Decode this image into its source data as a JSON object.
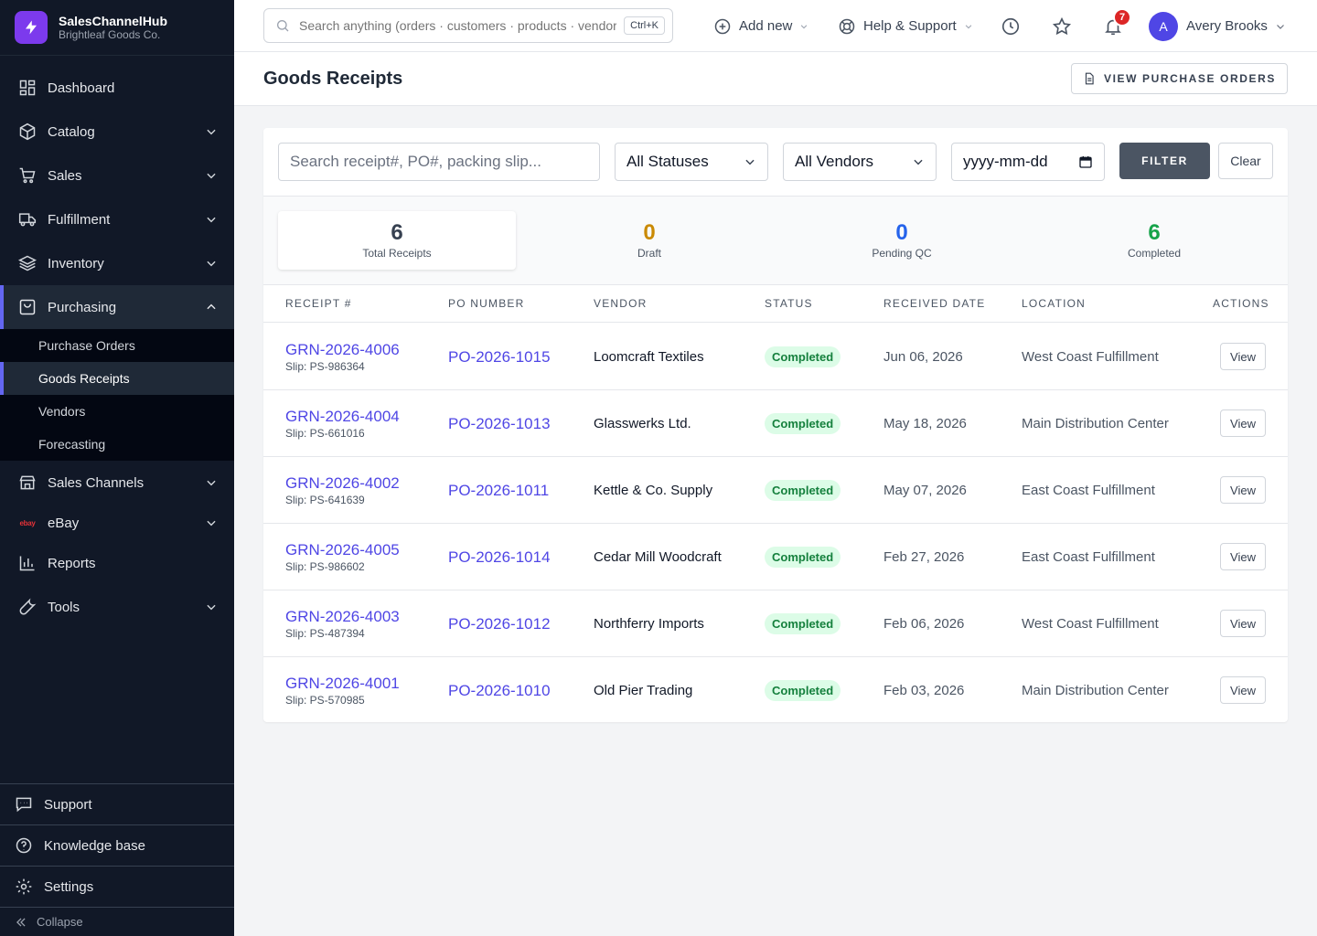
{
  "app": {
    "name": "SalesChannelHub",
    "org": "Brightleaf Goods Co.",
    "brand_color": "#7c3aed"
  },
  "sidebar": {
    "items": [
      {
        "key": "dashboard",
        "label": "Dashboard",
        "icon": "dashboard-icon"
      },
      {
        "key": "catalog",
        "label": "Catalog",
        "icon": "box-icon"
      },
      {
        "key": "sales",
        "label": "Sales",
        "icon": "cart-icon"
      },
      {
        "key": "fulfillment",
        "label": "Fulfillment",
        "icon": "truck-icon"
      },
      {
        "key": "inventory",
        "label": "Inventory",
        "icon": "layers-icon"
      },
      {
        "key": "purchasing",
        "label": "Purchasing",
        "icon": "bag-icon"
      },
      {
        "key": "sales-channels",
        "label": "Sales Channels",
        "icon": "store-icon"
      },
      {
        "key": "ebay",
        "label": "eBay",
        "icon": "ebay-logo"
      },
      {
        "key": "reports",
        "label": "Reports",
        "icon": "bar-chart-icon"
      },
      {
        "key": "tools",
        "label": "Tools",
        "icon": "wrench-icon"
      }
    ],
    "purchasing_sub": [
      {
        "label": "Purchase Orders"
      },
      {
        "label": "Goods Receipts"
      },
      {
        "label": "Vendors"
      },
      {
        "label": "Forecasting"
      }
    ],
    "ebay_logo": "ebay",
    "footer": [
      {
        "label": "Support",
        "icon": "chat-icon"
      },
      {
        "label": "Knowledge base",
        "icon": "question-icon"
      },
      {
        "label": "Settings",
        "icon": "gear-icon"
      }
    ],
    "collapse_label": "Collapse"
  },
  "topbar": {
    "search_placeholder": "Search anything (orders · customers · products · vendors)",
    "shortcut": "Ctrl+K",
    "add_new": "Add new",
    "help": "Help & Support",
    "notifications_count": "7",
    "user_initial": "A",
    "user_name": "Avery Brooks"
  },
  "page": {
    "title": "Goods Receipts",
    "view_pos_label": "VIEW PURCHASE ORDERS"
  },
  "filters": {
    "search_placeholder": "Search receipt#, PO#, packing slip...",
    "status_value": "All Statuses",
    "vendor_value": "All Vendors",
    "date_placeholder": "yyyy-mm-dd",
    "filter_label": "FILTER",
    "clear_label": "Clear"
  },
  "stats": [
    {
      "value": "6",
      "label": "Total Receipts",
      "color": "#374151"
    },
    {
      "value": "0",
      "label": "Draft",
      "color": "#ca8a04"
    },
    {
      "value": "0",
      "label": "Pending QC",
      "color": "#2563eb"
    },
    {
      "value": "6",
      "label": "Completed",
      "color": "#16a34a"
    }
  ],
  "table": {
    "headers": [
      "Receipt #",
      "PO Number",
      "Vendor",
      "Status",
      "Received Date",
      "Location",
      "Actions"
    ],
    "rows": [
      {
        "receipt": "GRN-2026-4006",
        "slip": "Slip: PS-986364",
        "po": "PO-2026-1015",
        "vendor": "Loomcraft Textiles",
        "status": "Completed",
        "date": "Jun 06, 2026",
        "location": "West Coast Fulfillment",
        "action": "View"
      },
      {
        "receipt": "GRN-2026-4004",
        "slip": "Slip: PS-661016",
        "po": "PO-2026-1013",
        "vendor": "Glasswerks Ltd.",
        "status": "Completed",
        "date": "May 18, 2026",
        "location": "Main Distribution Center",
        "action": "View"
      },
      {
        "receipt": "GRN-2026-4002",
        "slip": "Slip: PS-641639",
        "po": "PO-2026-1011",
        "vendor": "Kettle & Co. Supply",
        "status": "Completed",
        "date": "May 07, 2026",
        "location": "East Coast Fulfillment",
        "action": "View"
      },
      {
        "receipt": "GRN-2026-4005",
        "slip": "Slip: PS-986602",
        "po": "PO-2026-1014",
        "vendor": "Cedar Mill Woodcraft",
        "status": "Completed",
        "date": "Feb 27, 2026",
        "location": "East Coast Fulfillment",
        "action": "View"
      },
      {
        "receipt": "GRN-2026-4003",
        "slip": "Slip: PS-487394",
        "po": "PO-2026-1012",
        "vendor": "Northferry Imports",
        "status": "Completed",
        "date": "Feb 06, 2026",
        "location": "West Coast Fulfillment",
        "action": "View"
      },
      {
        "receipt": "GRN-2026-4001",
        "slip": "Slip: PS-570985",
        "po": "PO-2026-1010",
        "vendor": "Old Pier Trading",
        "status": "Completed",
        "date": "Feb 03, 2026",
        "location": "Main Distribution Center",
        "action": "View"
      }
    ]
  }
}
